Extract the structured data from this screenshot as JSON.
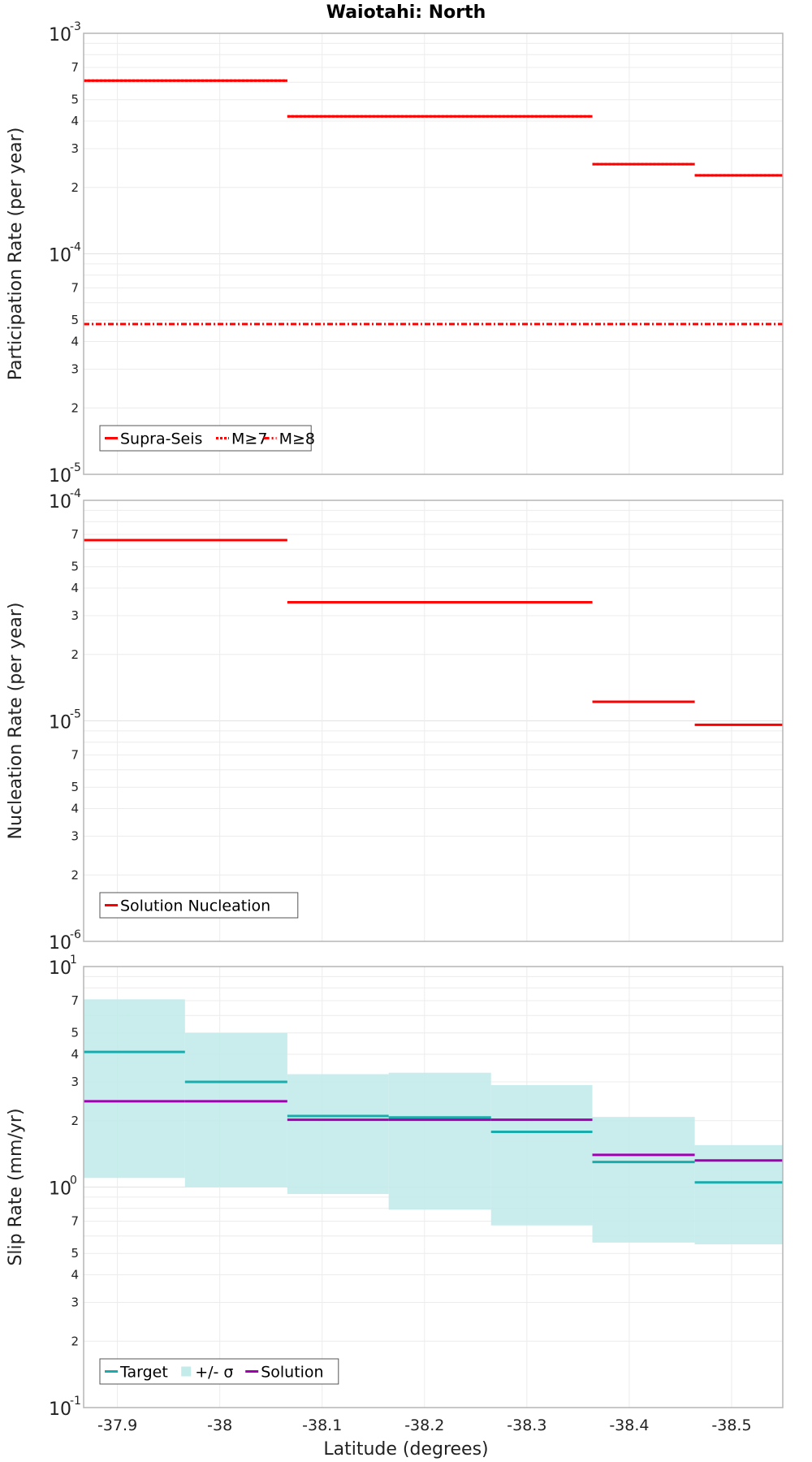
{
  "title": "Waiotahi: North",
  "xlabel": "Latitude (degrees)",
  "x_ticks": [
    -37.9,
    -38.0,
    -38.1,
    -38.2,
    -38.3,
    -38.4,
    -38.5
  ],
  "x_tick_labels": [
    "-37.9",
    "-38",
    "-38.1",
    "-38.2",
    "-38.3",
    "-38.4",
    "-38.5"
  ],
  "colors": {
    "red": "#ff0000",
    "teal": "#1aacac",
    "band": "#c2ebea",
    "purple": "#a000b0",
    "grid": "#ececec",
    "frame": "#b5b5b5"
  },
  "chart_data": [
    {
      "type": "line",
      "ylabel": "Participation Rate (per year)",
      "yscale": "log",
      "ylim": [
        1e-05,
        0.001
      ],
      "xlim": [
        -37.867,
        -38.55
      ],
      "y_decades": [
        {
          "base": "10",
          "exp": "-3"
        },
        {
          "base": "10",
          "exp": "-4"
        },
        {
          "base": "10",
          "exp": "-5"
        }
      ],
      "y_minor_labels": [
        "7",
        "5",
        "4",
        "3",
        "2"
      ],
      "series": [
        {
          "name": "Supra-Seis",
          "style": "solid",
          "segments": [
            {
              "x": [
                -37.867,
                -38.066
              ],
              "y": 0.00061
            },
            {
              "x": [
                -38.066,
                -38.364
              ],
              "y": 0.00042
            },
            {
              "x": [
                -38.364,
                -38.464
              ],
              "y": 0.000255
            },
            {
              "x": [
                -38.464,
                -38.55
              ],
              "y": 0.000227
            }
          ]
        },
        {
          "name": "M≥7",
          "style": "dotted",
          "segments": [
            {
              "x": [
                -37.867,
                -38.066
              ],
              "y": 0.00061
            },
            {
              "x": [
                -38.066,
                -38.364
              ],
              "y": 0.00042
            },
            {
              "x": [
                -38.364,
                -38.464
              ],
              "y": 0.000255
            },
            {
              "x": [
                -38.464,
                -38.55
              ],
              "y": 0.000227
            }
          ]
        },
        {
          "name": "M≥8",
          "style": "dashdot",
          "segments": [
            {
              "x": [
                -37.867,
                -38.55
              ],
              "y": 4.8e-05
            }
          ]
        }
      ],
      "legend": [
        "Supra-Seis",
        "M≥7",
        "M≥8"
      ]
    },
    {
      "type": "line",
      "ylabel": "Nucleation Rate (per year)",
      "yscale": "log",
      "ylim": [
        1e-06,
        0.0001
      ],
      "xlim": [
        -37.867,
        -38.55
      ],
      "y_decades": [
        {
          "base": "10",
          "exp": "-4"
        },
        {
          "base": "10",
          "exp": "-5"
        },
        {
          "base": "10",
          "exp": "-6"
        }
      ],
      "y_minor_labels": [
        "7",
        "5",
        "4",
        "3",
        "2"
      ],
      "series": [
        {
          "name": "Solution Nucleation",
          "style": "solid",
          "segments": [
            {
              "x": [
                -37.867,
                -38.066
              ],
              "y": 6.6e-05
            },
            {
              "x": [
                -38.066,
                -38.364
              ],
              "y": 3.45e-05
            },
            {
              "x": [
                -38.364,
                -38.464
              ],
              "y": 1.22e-05
            },
            {
              "x": [
                -38.464,
                -38.55
              ],
              "y": 9.6e-06
            }
          ]
        }
      ],
      "legend": [
        "Solution Nucleation"
      ]
    },
    {
      "type": "area",
      "ylabel": "Slip Rate (mm/yr)",
      "yscale": "log",
      "ylim": [
        0.1,
        10
      ],
      "xlim": [
        -37.867,
        -38.55
      ],
      "y_decades": [
        {
          "base": "10",
          "exp": "1"
        },
        {
          "base": "10",
          "exp": "0"
        },
        {
          "base": "10",
          "exp": "-1"
        }
      ],
      "y_minor_labels": [
        "7",
        "5",
        "4",
        "3",
        "2"
      ],
      "bins": [
        {
          "x": [
            -37.867,
            -37.966
          ],
          "target": 4.1,
          "low": 1.1,
          "high": 7.1,
          "solution": 2.45
        },
        {
          "x": [
            -37.966,
            -38.066
          ],
          "target": 3.0,
          "low": 1.0,
          "high": 5.0,
          "solution": 2.45
        },
        {
          "x": [
            -38.066,
            -38.165
          ],
          "target": 2.1,
          "low": 0.93,
          "high": 3.25,
          "solution": 2.02
        },
        {
          "x": [
            -38.165,
            -38.265
          ],
          "target": 2.07,
          "low": 0.79,
          "high": 3.3,
          "solution": 2.02
        },
        {
          "x": [
            -38.265,
            -38.364
          ],
          "target": 1.78,
          "low": 0.67,
          "high": 2.9,
          "solution": 2.02
        },
        {
          "x": [
            -38.364,
            -38.464
          ],
          "target": 1.3,
          "low": 0.56,
          "high": 2.08,
          "solution": 1.4
        },
        {
          "x": [
            -38.464,
            -38.55
          ],
          "target": 1.05,
          "low": 0.55,
          "high": 1.55,
          "solution": 1.32
        }
      ],
      "legend": [
        "Target",
        "+/- σ",
        "Solution"
      ]
    }
  ]
}
